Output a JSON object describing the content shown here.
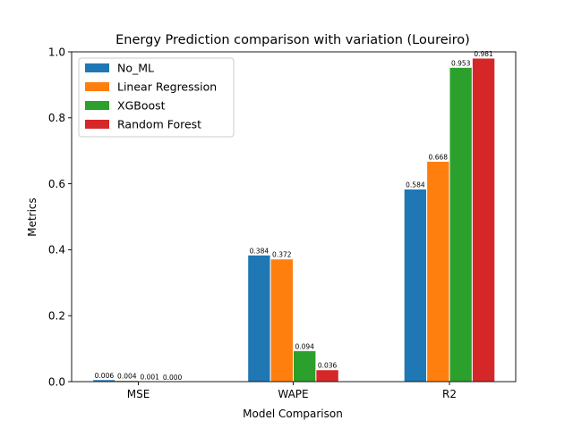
{
  "chart_data": {
    "type": "bar",
    "title": "Energy Prediction comparison with variation (Loureiro)",
    "xlabel": "Model Comparison",
    "ylabel": "Metrics",
    "categories": [
      "MSE",
      "WAPE",
      "R2"
    ],
    "ylim": [
      0,
      1.0
    ],
    "yticks": [
      "0.0",
      "0.2",
      "0.4",
      "0.6",
      "0.8",
      "1.0"
    ],
    "ytick_values": [
      0,
      0.2,
      0.4,
      0.6,
      0.8,
      1.0
    ],
    "grid": false,
    "legend_position": "top-left",
    "series": [
      {
        "name": "No_ML",
        "color": "#1f77b4",
        "values": [
          0.006,
          0.384,
          0.584
        ],
        "labels": [
          "0.006",
          "0.384",
          "0.584"
        ]
      },
      {
        "name": "Linear Regression",
        "color": "#ff7f0e",
        "values": [
          0.004,
          0.372,
          0.668
        ],
        "labels": [
          "0.004",
          "0.372",
          "0.668"
        ]
      },
      {
        "name": "XGBoost",
        "color": "#2ca02c",
        "values": [
          0.001,
          0.094,
          0.953
        ],
        "labels": [
          "0.001",
          "0.094",
          "0.953"
        ]
      },
      {
        "name": "Random Forest",
        "color": "#d62728",
        "values": [
          0.0,
          0.036,
          0.981
        ],
        "labels": [
          "0.000",
          "0.036",
          "0.981"
        ]
      }
    ]
  }
}
